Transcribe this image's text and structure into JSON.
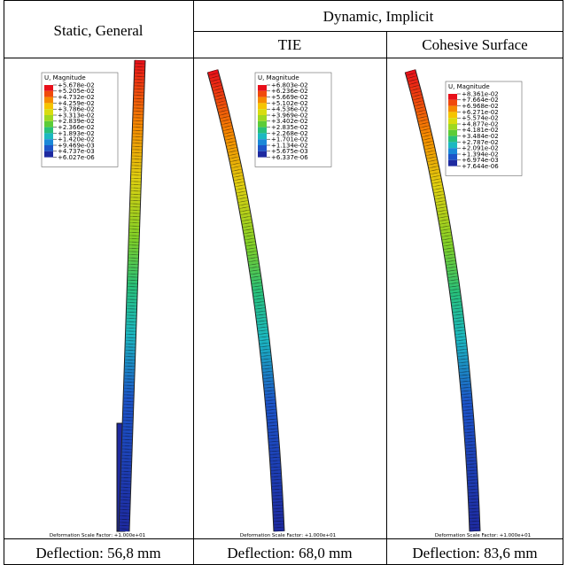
{
  "header": {
    "static": "Static, General",
    "dynamic": "Dynamic, Implicit",
    "tie": "TIE",
    "cohesive": "Cohesive Surface"
  },
  "panels": [
    {
      "legend_title": "U, Magnitude",
      "legend": [
        "+5.678e-02",
        "+5.205e-02",
        "+4.732e-02",
        "+4.259e-02",
        "+3.786e-02",
        "+3.313e-02",
        "+2.839e-02",
        "+2.366e-02",
        "+1.893e-02",
        "+1.420e-02",
        "+9.469e-03",
        "+4.737e-03",
        "+6.027e-06"
      ],
      "scale_factor": "Deformation Scale Factor: +1.000e+01",
      "deflection": "Deflection:  56,8 mm"
    },
    {
      "legend_title": "U, Magnitude",
      "legend": [
        "+6.803e-02",
        "+6.236e-02",
        "+5.669e-02",
        "+5.102e-02",
        "+4.536e-02",
        "+3.969e-02",
        "+3.402e-02",
        "+2.835e-02",
        "+2.268e-02",
        "+1.701e-02",
        "+1.134e-02",
        "+5.675e-03",
        "+6.337e-06"
      ],
      "scale_factor": "Deformation Scale Factor: +1.000e+01",
      "deflection": "Deflection:  68,0 mm"
    },
    {
      "legend_title": "U, Magnitude",
      "legend": [
        "+8.361e-02",
        "+7.664e-02",
        "+6.968e-02",
        "+6.271e-02",
        "+5.574e-02",
        "+4.877e-02",
        "+4.181e-02",
        "+3.484e-02",
        "+2.787e-02",
        "+2.091e-02",
        "+1.394e-02",
        "+6.974e-03",
        "+7.644e-06"
      ],
      "scale_factor": "Deformation Scale Factor: +1.000e+01",
      "deflection": "Deflection:  83,6 mm"
    }
  ]
}
